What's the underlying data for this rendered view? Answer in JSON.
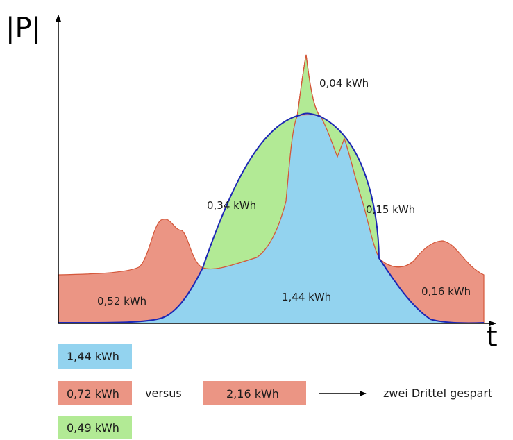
{
  "colors": {
    "blue_area": "#93d3ef",
    "red_area": "#eb9584",
    "green_area": "#b2ea95",
    "blue_line": "#1c27b5",
    "red_line": "#d4573a",
    "axis": "#000000"
  },
  "axes": {
    "y_label": "|P|",
    "x_label": "t"
  },
  "region_labels": {
    "peak": "0,04 kWh",
    "green_left": "0,34 kWh",
    "green_right": "0,15 kWh",
    "red_left": "0,52 kWh",
    "blue_center": "1,44 kWh",
    "red_right": "0,16 kWh"
  },
  "legend": {
    "blue_box": "1,44 kWh",
    "red_box": "0,72 kWh",
    "versus": "versus",
    "red_total_box": "2,16 kWh",
    "arrow_text": "zwei Drittel gespart",
    "green_box": "0,49 kWh"
  }
}
